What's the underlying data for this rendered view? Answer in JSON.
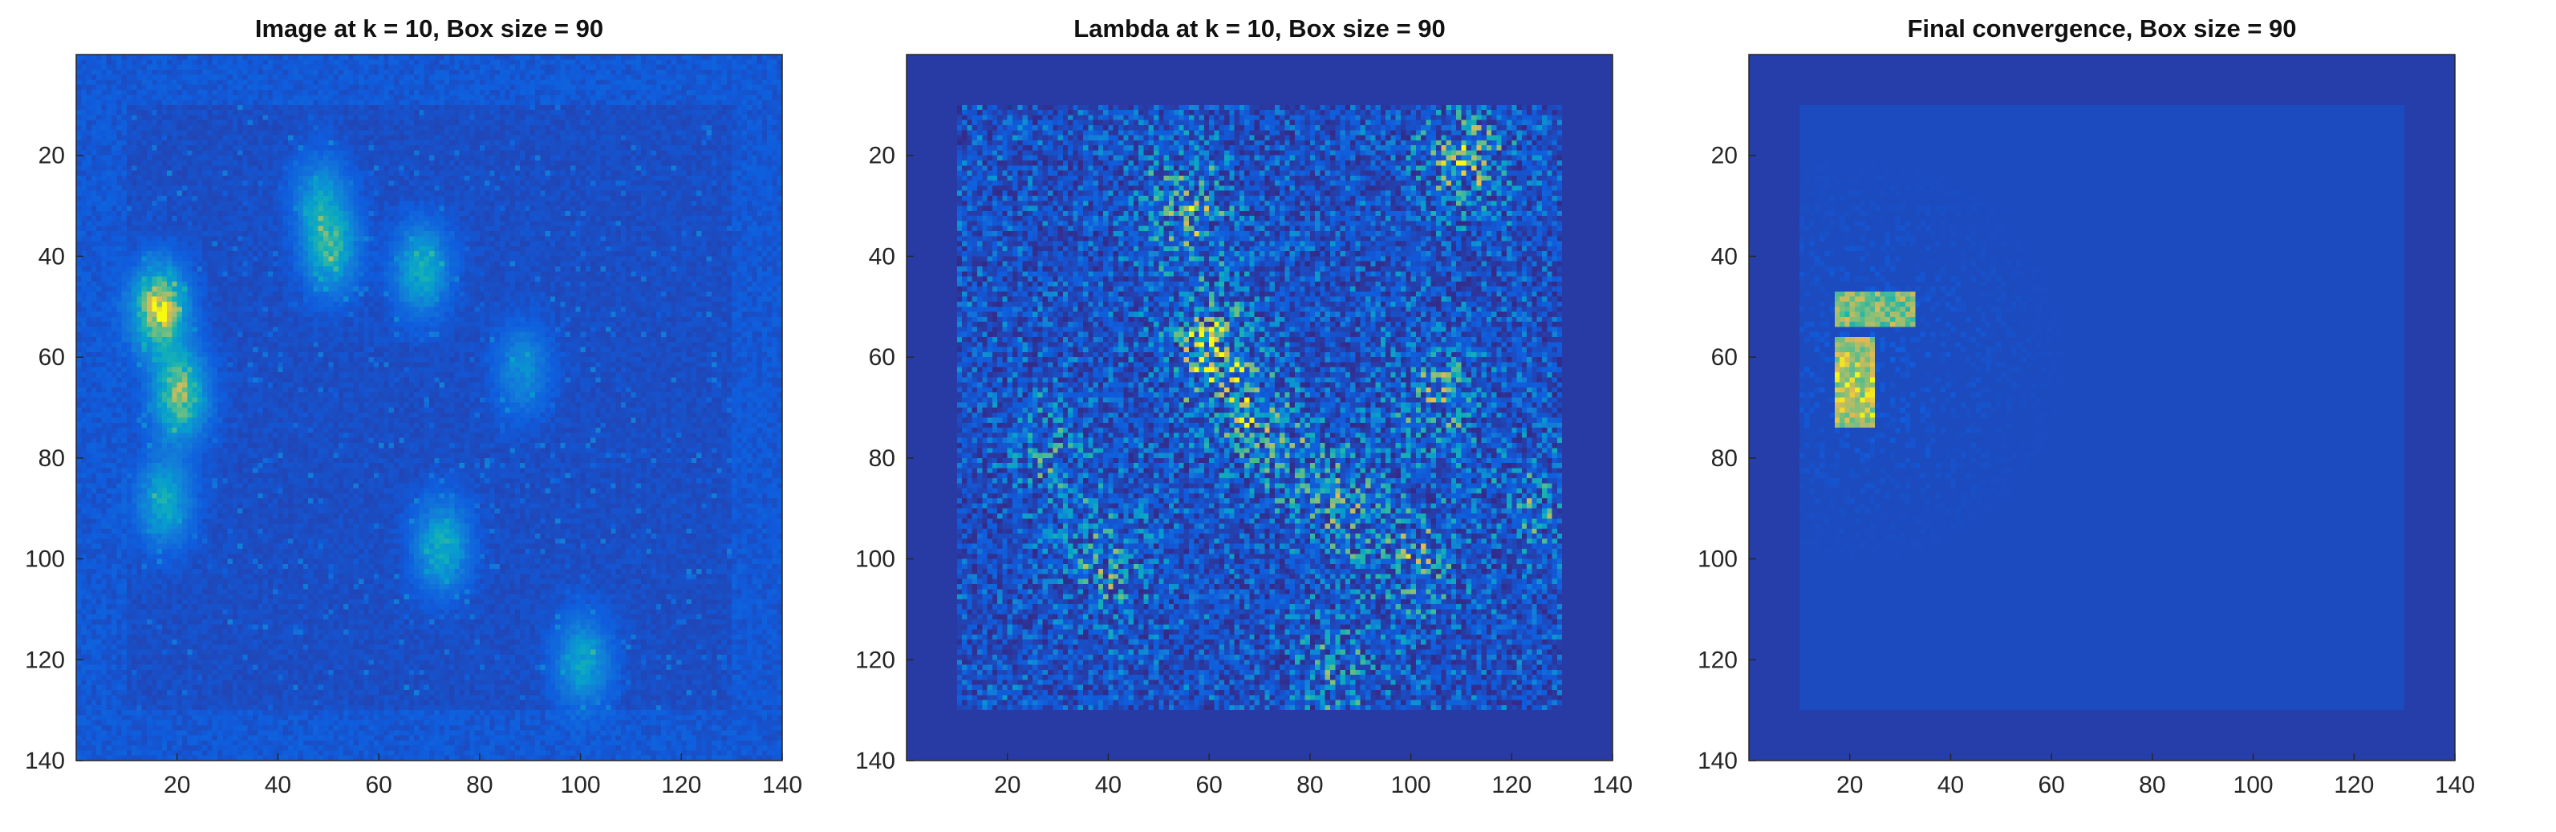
{
  "chart_data": [
    {
      "type": "heatmap",
      "title": "Image at k = 10, Box size = 90",
      "xlabel": "",
      "ylabel": "",
      "xlim": [
        0,
        140
      ],
      "ylim": [
        140,
        0
      ],
      "x_ticks": [
        "20",
        "40",
        "60",
        "80",
        "100",
        "120",
        "140"
      ],
      "y_ticks": [
        "20",
        "40",
        "60",
        "80",
        "100",
        "120",
        "140"
      ],
      "colormap": "parula",
      "background_color": "#3e36b8",
      "box_region": [
        10,
        130
      ],
      "hotspots": [
        {
          "x": 16,
          "y": 50,
          "intensity": 0.95
        },
        {
          "x": 20,
          "y": 67,
          "intensity": 0.8
        },
        {
          "x": 17,
          "y": 88,
          "intensity": 0.5
        },
        {
          "x": 50,
          "y": 38,
          "intensity": 0.55
        },
        {
          "x": 68,
          "y": 42,
          "intensity": 0.5
        },
        {
          "x": 72,
          "y": 97,
          "intensity": 0.5
        },
        {
          "x": 100,
          "y": 120,
          "intensity": 0.45
        },
        {
          "x": 48,
          "y": 28,
          "intensity": 0.35
        },
        {
          "x": 88,
          "y": 62,
          "intensity": 0.3
        }
      ]
    },
    {
      "type": "heatmap",
      "title": "Lambda at k = 10, Box size = 90",
      "xlabel": "",
      "ylabel": "",
      "xlim": [
        0,
        140
      ],
      "ylim": [
        140,
        0
      ],
      "x_ticks": [
        "20",
        "40",
        "60",
        "80",
        "100",
        "120",
        "140"
      ],
      "y_ticks": [
        "20",
        "40",
        "60",
        "80",
        "100",
        "120",
        "140"
      ],
      "colormap": "parula",
      "background_color": "#3b2fb0",
      "box_region": [
        10,
        130
      ],
      "hotspots": [
        {
          "x": 60,
          "y": 58,
          "intensity": 0.9
        },
        {
          "x": 55,
          "y": 30,
          "intensity": 0.7
        },
        {
          "x": 70,
          "y": 75,
          "intensity": 0.7
        },
        {
          "x": 85,
          "y": 88,
          "intensity": 0.6
        },
        {
          "x": 105,
          "y": 68,
          "intensity": 0.7
        },
        {
          "x": 110,
          "y": 20,
          "intensity": 0.8
        },
        {
          "x": 100,
          "y": 100,
          "intensity": 0.6
        },
        {
          "x": 40,
          "y": 100,
          "intensity": 0.6
        },
        {
          "x": 28,
          "y": 78,
          "intensity": 0.5
        },
        {
          "x": 125,
          "y": 90,
          "intensity": 0.5
        },
        {
          "x": 85,
          "y": 122,
          "intensity": 0.5
        }
      ]
    },
    {
      "type": "heatmap",
      "title": "Final convergence, Box size = 90",
      "xlabel": "",
      "ylabel": "",
      "xlim": [
        0,
        140
      ],
      "ylim": [
        140,
        0
      ],
      "x_ticks": [
        "20",
        "40",
        "60",
        "80",
        "100",
        "120",
        "140"
      ],
      "y_ticks": [
        "20",
        "40",
        "60",
        "80",
        "100",
        "120",
        "140"
      ],
      "colormap": "parula",
      "background_color": "#3d33b0",
      "box_region": [
        10,
        130
      ],
      "hotspots": [
        {
          "x": 24,
          "y": 50,
          "intensity": 0.85
        },
        {
          "x": 20,
          "y": 65,
          "intensity": 0.95
        }
      ]
    }
  ]
}
